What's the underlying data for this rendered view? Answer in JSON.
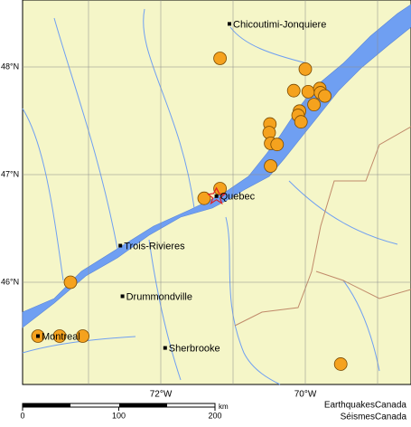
{
  "map": {
    "lat_ticks": [
      {
        "value": 46,
        "label": "46°N"
      },
      {
        "value": 47,
        "label": "47°N"
      },
      {
        "value": 48,
        "label": "48°N"
      }
    ],
    "lon_ticks": [
      {
        "value": -72,
        "label": "72°W"
      },
      {
        "value": -70,
        "label": "70°W"
      }
    ],
    "lon_grid": [
      -73,
      -71,
      -69
    ],
    "cities": [
      {
        "name": "Chicoutimi-Jonquiere",
        "lat": 48.4,
        "lon": -71.05
      },
      {
        "name": "Quebec",
        "lat": 46.8,
        "lon": -71.23
      },
      {
        "name": "Trois-Rivieres",
        "lat": 46.34,
        "lon": -72.56
      },
      {
        "name": "Drummondville",
        "lat": 45.87,
        "lon": -72.53
      },
      {
        "name": "Sherbrooke",
        "lat": 45.39,
        "lon": -71.94
      },
      {
        "name": "Montreal",
        "lat": 45.5,
        "lon": -73.7
      }
    ],
    "events": [
      {
        "lat": 48.08,
        "lon": -71.18
      },
      {
        "lat": 47.98,
        "lon": -70.0
      },
      {
        "lat": 47.78,
        "lon": -70.16
      },
      {
        "lat": 47.77,
        "lon": -69.96
      },
      {
        "lat": 47.8,
        "lon": -69.8
      },
      {
        "lat": 47.76,
        "lon": -69.79
      },
      {
        "lat": 47.73,
        "lon": -69.73
      },
      {
        "lat": 47.65,
        "lon": -69.88
      },
      {
        "lat": 47.59,
        "lon": -70.08
      },
      {
        "lat": 47.55,
        "lon": -70.1
      },
      {
        "lat": 47.47,
        "lon": -70.49
      },
      {
        "lat": 47.39,
        "lon": -70.5
      },
      {
        "lat": 47.29,
        "lon": -70.48
      },
      {
        "lat": 47.28,
        "lon": -70.39
      },
      {
        "lat": 47.49,
        "lon": -70.06
      },
      {
        "lat": 47.08,
        "lon": -70.48
      },
      {
        "lat": 46.87,
        "lon": -71.18
      },
      {
        "lat": 46.78,
        "lon": -71.4
      },
      {
        "lat": 46.0,
        "lon": -73.25
      },
      {
        "lat": 45.5,
        "lon": -73.7
      },
      {
        "lat": 45.5,
        "lon": -73.4
      },
      {
        "lat": 45.5,
        "lon": -73.08
      },
      {
        "lat": 45.24,
        "lon": -69.51
      }
    ],
    "event_color": "#f5a21e",
    "scale": {
      "ticks": [
        0,
        100,
        200
      ],
      "unit": "km"
    },
    "credits": [
      "EarthquakesCanada",
      "SéismesCanada"
    ]
  }
}
